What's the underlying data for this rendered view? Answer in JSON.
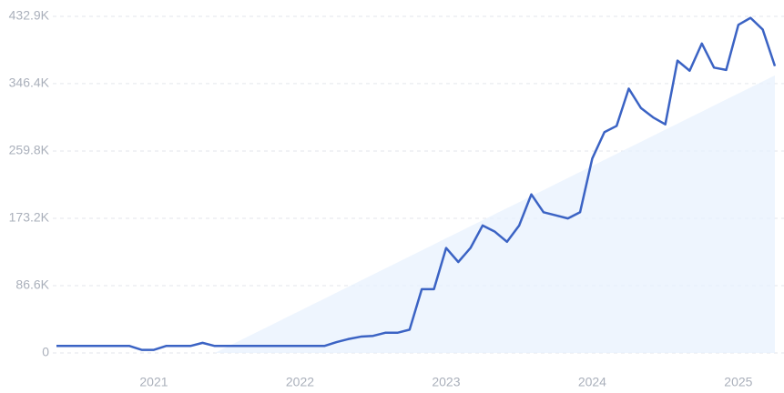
{
  "chart_data": {
    "type": "line",
    "categories": [
      null,
      null,
      null,
      null,
      null,
      null,
      null,
      null,
      "2021",
      null,
      null,
      null,
      null,
      null,
      null,
      null,
      null,
      null,
      null,
      null,
      "2022",
      null,
      null,
      null,
      null,
      null,
      null,
      null,
      null,
      null,
      null,
      null,
      "2023",
      null,
      null,
      null,
      null,
      null,
      null,
      null,
      null,
      null,
      null,
      null,
      "2024",
      null,
      null,
      null,
      null,
      null,
      null,
      null,
      null,
      null,
      null,
      null,
      "2025",
      null,
      null,
      null
    ],
    "series": [
      {
        "color": "#3b63c4",
        "values": [
          9000,
          9000,
          9000,
          9000,
          9000,
          9000,
          9000,
          4000,
          4000,
          9000,
          9000,
          9000,
          13000,
          9000,
          9000,
          9000,
          9000,
          9000,
          9000,
          9000,
          9000,
          9000,
          9000,
          14000,
          18000,
          21000,
          22000,
          26000,
          26000,
          30000,
          82000,
          82000,
          135000,
          117000,
          135000,
          164000,
          156000,
          143000,
          164000,
          204000,
          181000,
          177000,
          173000,
          181000,
          250000,
          284000,
          292000,
          340000,
          315000,
          303000,
          294000,
          376000,
          363000,
          398000,
          367000,
          364000,
          422000,
          431000,
          416000,
          369000
        ]
      },
      {
        "color": "#e8f1fd",
        "values": [
          null,
          null,
          null,
          null,
          null,
          null,
          null,
          null,
          null,
          null,
          null,
          null,
          null,
          0,
          7800,
          15500,
          23300,
          31000,
          38800,
          46600,
          54300,
          62100,
          69800,
          77600,
          85400,
          93100,
          100900,
          108700,
          116400,
          124200,
          131900,
          139700,
          147500,
          155200,
          163000,
          170700,
          178500,
          186300,
          194000,
          201800,
          209500,
          217300,
          225100,
          232800,
          240600,
          248400,
          256100,
          263900,
          271600,
          279400,
          287200,
          294900,
          302700,
          310400,
          318200,
          326000,
          333700,
          341500,
          349200,
          357000
        ]
      }
    ],
    "ylim": [
      0,
      432900
    ],
    "yticks": [
      0,
      {
        "value": 86600,
        "label": "86.6K"
      },
      {
        "value": 173200,
        "label": "173.2K"
      },
      {
        "value": 259800,
        "label": "259.8K"
      },
      {
        "value": 346400,
        "label": "346.4K"
      },
      {
        "value": 432900,
        "label": "432.9K"
      }
    ],
    "grid": true
  }
}
